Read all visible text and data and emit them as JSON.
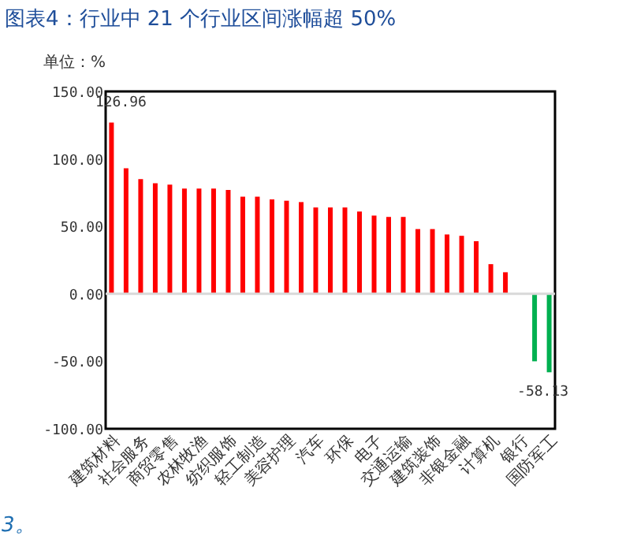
{
  "chart_data": {
    "type": "bar",
    "title": "图表4：行业中 21 个行业区间涨幅超 50%",
    "ylabel": "单位：%",
    "categories": [
      "建筑材料",
      null,
      "社会服务",
      null,
      "商贸零售",
      null,
      "农林牧渔",
      null,
      "纺织服饰",
      null,
      "轻工制造",
      null,
      "美容护理",
      null,
      "汽车",
      null,
      "环保",
      null,
      "电子",
      null,
      "交通运输",
      null,
      "建筑装饰",
      null,
      "非银金融",
      null,
      "计算机",
      null,
      "银行",
      null,
      "国防军工"
    ],
    "values": [
      126.96,
      93,
      85,
      82,
      81,
      78,
      78,
      78,
      77,
      72,
      72,
      70,
      69,
      68,
      64,
      64,
      64,
      61,
      58,
      57,
      57,
      48,
      48,
      44,
      43,
      39,
      22,
      16,
      0,
      -50,
      -58.13
    ],
    "colors": [
      "#ff0000",
      "#ff0000",
      "#ff0000",
      "#ff0000",
      "#ff0000",
      "#ff0000",
      "#ff0000",
      "#ff0000",
      "#ff0000",
      "#ff0000",
      "#ff0000",
      "#ff0000",
      "#ff0000",
      "#ff0000",
      "#ff0000",
      "#ff0000",
      "#ff0000",
      "#ff0000",
      "#ff0000",
      "#ff0000",
      "#ff0000",
      "#ff0000",
      "#ff0000",
      "#ff0000",
      "#ff0000",
      "#ff0000",
      "#ff0000",
      "#ff0000",
      "#ff0000",
      "#00b050",
      "#00b050"
    ],
    "value_labels": [
      "126.96",
      null,
      null,
      null,
      null,
      null,
      null,
      null,
      null,
      null,
      null,
      null,
      null,
      null,
      null,
      null,
      null,
      null,
      null,
      null,
      null,
      null,
      null,
      null,
      null,
      null,
      null,
      null,
      null,
      null,
      "-58.13"
    ],
    "ylim": [
      -100,
      150
    ],
    "yticks": [
      {
        "value": -100,
        "label": "-100.00"
      },
      {
        "value": -50,
        "label": "-50.00"
      },
      {
        "value": 0,
        "label": "0.00"
      },
      {
        "value": 50,
        "label": "50.00"
      },
      {
        "value": 100,
        "label": "100.00"
      },
      {
        "value": 150,
        "label": "150.00"
      }
    ],
    "ref_lines": [
      {
        "axis": "y",
        "value": 0,
        "color": "#d9d9d9"
      }
    ],
    "annotations": [
      "3。"
    ],
    "grid": false
  }
}
